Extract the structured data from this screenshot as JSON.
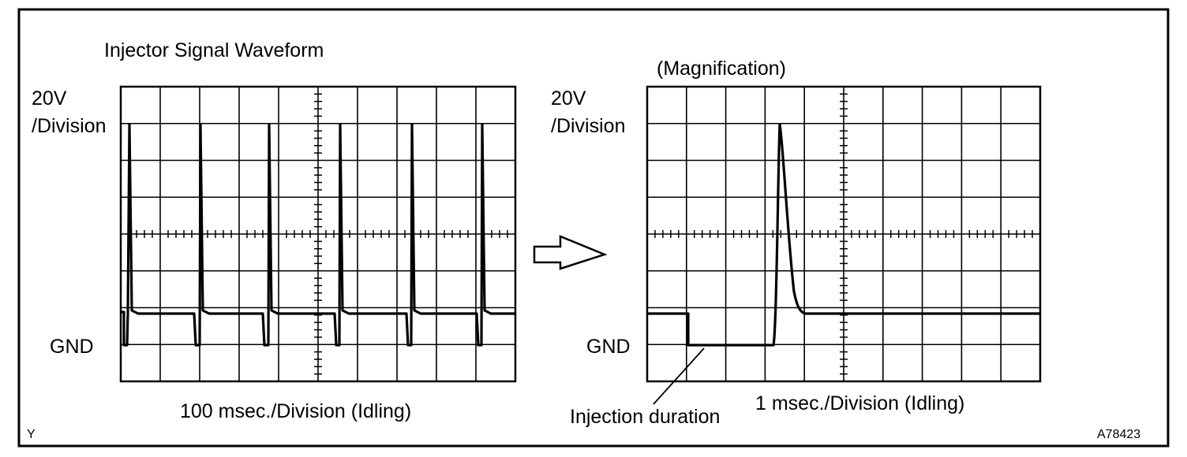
{
  "left_panel": {
    "title": "Injector Signal Waveform",
    "volt_label_line1": "20V",
    "volt_label_line2": "/Division",
    "gnd_label": "GND",
    "time_label": "100 msec./Division (Idling)"
  },
  "right_panel": {
    "title": "(Magnification)",
    "volt_label_line1": "20V",
    "volt_label_line2": "/Division",
    "gnd_label": "GND",
    "time_label": "1 msec./Division (Idling)",
    "callout": "Injection duration"
  },
  "corner_mark_left": "Y",
  "figure_id": "A78423",
  "arrow_icon": "right-arrow-icon"
}
